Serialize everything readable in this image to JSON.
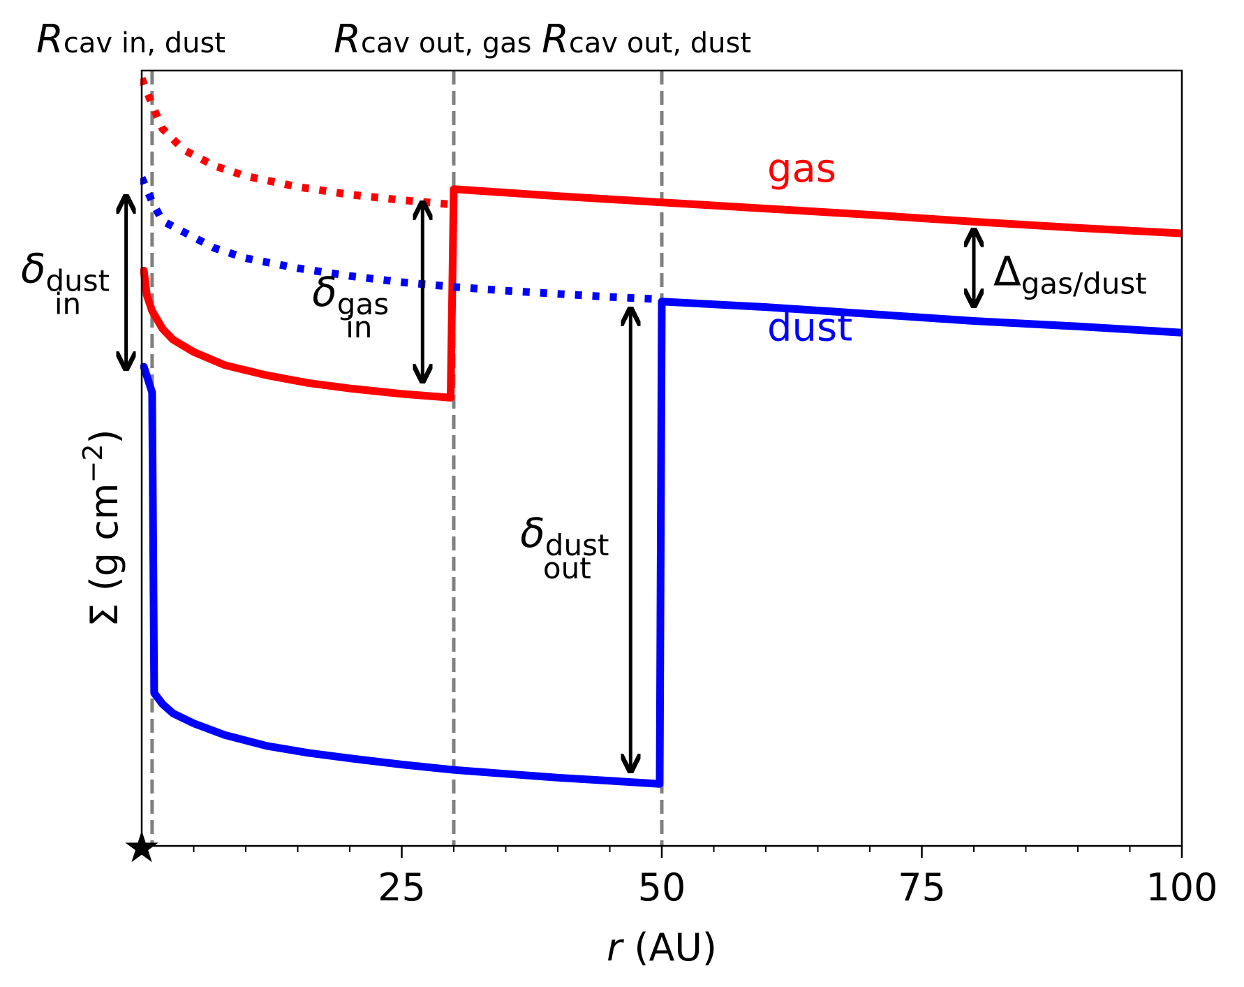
{
  "chart_data": {
    "type": "line",
    "title": "",
    "xlabel": {
      "var": "r",
      "unit": " (AU)"
    },
    "ylabel": {
      "sym": "Σ",
      "pre": " (g cm",
      "exp": "−2",
      "post": ")"
    },
    "xlim": [
      0,
      100
    ],
    "ylim": [
      0,
      1
    ],
    "y_log_scale": true,
    "y_ticks_shown": false,
    "grid": false,
    "x_ticks": [
      {
        "value": 25,
        "label": "25"
      },
      {
        "value": 50,
        "label": "50"
      },
      {
        "value": 75,
        "label": "75"
      },
      {
        "value": 100,
        "label": "100"
      }
    ],
    "x_minor_step": 5,
    "star_marker": {
      "x": 0,
      "glyph": "★"
    },
    "cavity_radii": [
      {
        "x": 1,
        "base": "R",
        "sub": "cav in,  dust"
      },
      {
        "x": 30,
        "base": "R",
        "sub": "cav out,  gas"
      },
      {
        "x": 50,
        "base": "R",
        "sub": "cav out,  dust"
      }
    ],
    "series": [
      {
        "name": "gas",
        "color": "#ff0000",
        "unperturbed": {
          "x": [
            0,
            1,
            2,
            4,
            7,
            10,
            15,
            20,
            25,
            30
          ],
          "y": [
            0.99,
            0.956,
            0.925,
            0.898,
            0.877,
            0.864,
            0.85,
            0.84,
            0.833,
            0.827
          ]
        },
        "depleted": {
          "x": [
            0.2,
            0.5,
            1,
            2,
            3,
            5,
            8,
            12,
            16,
            20,
            25,
            29.7
          ],
          "y": [
            0.742,
            0.71,
            0.69,
            0.667,
            0.653,
            0.637,
            0.62,
            0.607,
            0.597,
            0.59,
            0.583,
            0.578
          ]
        },
        "outer": {
          "x": [
            30,
            40,
            50,
            60,
            70,
            80,
            90,
            100
          ],
          "y": [
            0.847,
            0.838,
            0.83,
            0.822,
            0.814,
            0.805,
            0.797,
            0.79
          ]
        }
      },
      {
        "name": "dust",
        "color": "#0000ff",
        "unperturbed": {
          "x": [
            0,
            1,
            2,
            4,
            7,
            10,
            15,
            20,
            25,
            30,
            35,
            40,
            45,
            50
          ],
          "y": [
            0.862,
            0.831,
            0.806,
            0.792,
            0.771,
            0.758,
            0.745,
            0.735,
            0.727,
            0.721,
            0.716,
            0.712,
            0.708,
            0.705
          ]
        },
        "depleted": {
          "x": [
            0.2,
            1,
            1.2,
            1.5,
            2,
            3,
            5,
            8,
            12,
            16,
            20,
            25,
            30,
            35,
            40,
            45,
            49.8
          ],
          "y": [
            0.618,
            0.585,
            0.197,
            0.192,
            0.183,
            0.171,
            0.158,
            0.143,
            0.129,
            0.12,
            0.113,
            0.105,
            0.098,
            0.093,
            0.088,
            0.084,
            0.08
          ]
        },
        "outer": {
          "x": [
            50,
            60,
            70,
            80,
            90,
            100
          ],
          "y": [
            0.702,
            0.695,
            0.686,
            0.677,
            0.67,
            0.662
          ]
        }
      }
    ],
    "series_labels": [
      {
        "text": "gas",
        "color": "#ff0000",
        "x": 60,
        "y": 0.875
      },
      {
        "text": "dust",
        "color": "#0000ff",
        "x": 60,
        "y": 0.67
      }
    ],
    "annotations": [
      {
        "kind": "delta",
        "sym": "δ",
        "sub": "dust",
        "under": "in",
        "x": -1.5,
        "y_top": 0.839,
        "y_bottom": 0.614
      },
      {
        "kind": "delta",
        "sym": "δ",
        "sub": "gas",
        "under": "in",
        "x": 27,
        "y_top": 0.831,
        "y_bottom": 0.598
      },
      {
        "kind": "delta",
        "sym": "δ",
        "sub": "dust",
        "under": "out",
        "x": 47,
        "y_top": 0.694,
        "y_bottom": 0.095
      },
      {
        "kind": "delta",
        "sym": "Δ",
        "sub": "gas/dust",
        "under": "",
        "x": 80,
        "y_top": 0.796,
        "y_bottom": 0.695
      }
    ]
  }
}
